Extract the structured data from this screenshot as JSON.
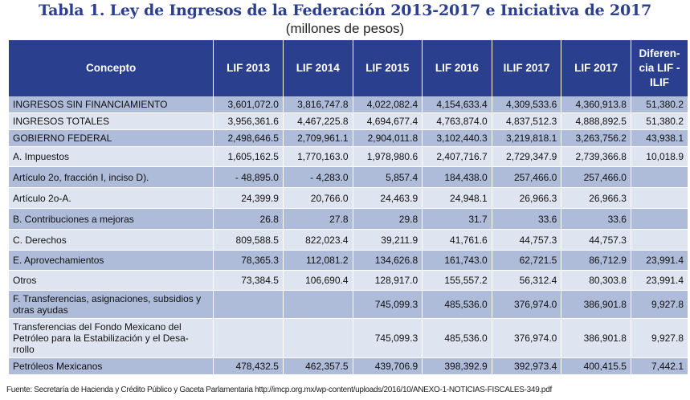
{
  "title": "Tabla 1. Ley de Ingresos de la Federación 2013-2017 e Iniciativa de 2017",
  "subtitle": "(millones de pesos)",
  "headers": [
    "Concepto",
    "LIF 2013",
    "LIF 2014",
    "LIF 2015",
    "LIF 2016",
    "ILIF 2017",
    "LIF 2017",
    "Diferen-cia LIF -ILIF"
  ],
  "rows": [
    {
      "concept": "INGRESOS SIN FINANCIAMIENTO",
      "values": [
        "3,601,072.0",
        "3,816,747.8",
        "4,022,082.4",
        "4,154,633.4",
        "4,309,533.6",
        "4,360,913.8",
        "51,380.2"
      ]
    },
    {
      "concept": "INGRESOS TOTALES",
      "values": [
        "3,956,361.6",
        "4,467,225.8",
        "4,694,677.4",
        "4,763,874.0",
        "4,837,512.3",
        "4,888,892.5",
        "51,380.2"
      ]
    },
    {
      "concept": "GOBIERNO FEDERAL",
      "values": [
        "2,498,646.5",
        "2,709,961.1",
        "2,904,011.8",
        "3,102,440.3",
        "3,219,818.1",
        "3,263,756.2",
        "43,938.1"
      ]
    },
    {
      "concept": "A. Impuestos",
      "values": [
        "1,605,162.5",
        "1,770,163.0",
        "1,978,980.6",
        "2,407,716.7",
        "2,729,347.9",
        "2,739,366.8",
        "10,018.9"
      ]
    },
    {
      "concept": "Artículo 2o, fracción I, inciso D).",
      "values": [
        "- 48,895.0",
        "- 4,283.0",
        "5,857.4",
        "184,438.0",
        "257,466.0",
        "257,466.0",
        ""
      ]
    },
    {
      "concept": "Artículo 2o-A.",
      "values": [
        "24,399.9",
        "20,766.0",
        "24,463.9",
        "24,948.1",
        "26,966.3",
        "26,966.3",
        ""
      ]
    },
    {
      "concept": "B. Contribuciones a mejoras",
      "values": [
        "26.8",
        "27.8",
        "29.8",
        "31.7",
        "33.6",
        "33.6",
        ""
      ]
    },
    {
      "concept": "C. Derechos",
      "values": [
        "809,588.5",
        "822,023.4",
        "39,211.9",
        "41,761.6",
        "44,757.3",
        "44,757.3",
        ""
      ]
    },
    {
      "concept": "E. Aprovechamientos",
      "values": [
        "78,365.3",
        "112,081.2",
        "134,626.8",
        "161,743.0",
        "62,721.5",
        "86,712.9",
        "23,991.4"
      ]
    },
    {
      "concept": "Otros",
      "values": [
        "73,384.5",
        "106,690.4",
        "128,917.0",
        "155,557.2",
        "56,312.4",
        "80,303.8",
        "23,991.4"
      ]
    },
    {
      "concept": "F. Transferencias, asignaciones, subsidios y otras ayudas",
      "values": [
        "",
        "",
        "745,099.3",
        "485,536.0",
        "376,974.0",
        "386,901.8",
        "9,927.8"
      ]
    },
    {
      "concept": "Transferencias del Fondo Mexicano del Petróleo para la Estabilización y el Desa-rrollo",
      "values": [
        "",
        "",
        "745,099.3",
        "485,536.0",
        "376,974.0",
        "386,901.8",
        "9,927.8"
      ]
    },
    {
      "concept": "Petróleos Mexicanos",
      "values": [
        "478,432.5",
        "462,357.5",
        "439,706.9",
        "398,392.9",
        "392,973.4",
        "400,415.5",
        "7,442.1"
      ]
    }
  ],
  "source": "Fuente: Secretaría de Hacienda y Crédito Público y Gaceta Parlamentaria http://imcp.org.mx/wp-content/uploads/2016/10/ANEXO-1-NOTICIAS-FISCALES-349.pdf",
  "colors": {
    "header_bg": "#2b3f8f",
    "row_dark": "#aebbd9",
    "row_light": "#dfe4f1"
  }
}
